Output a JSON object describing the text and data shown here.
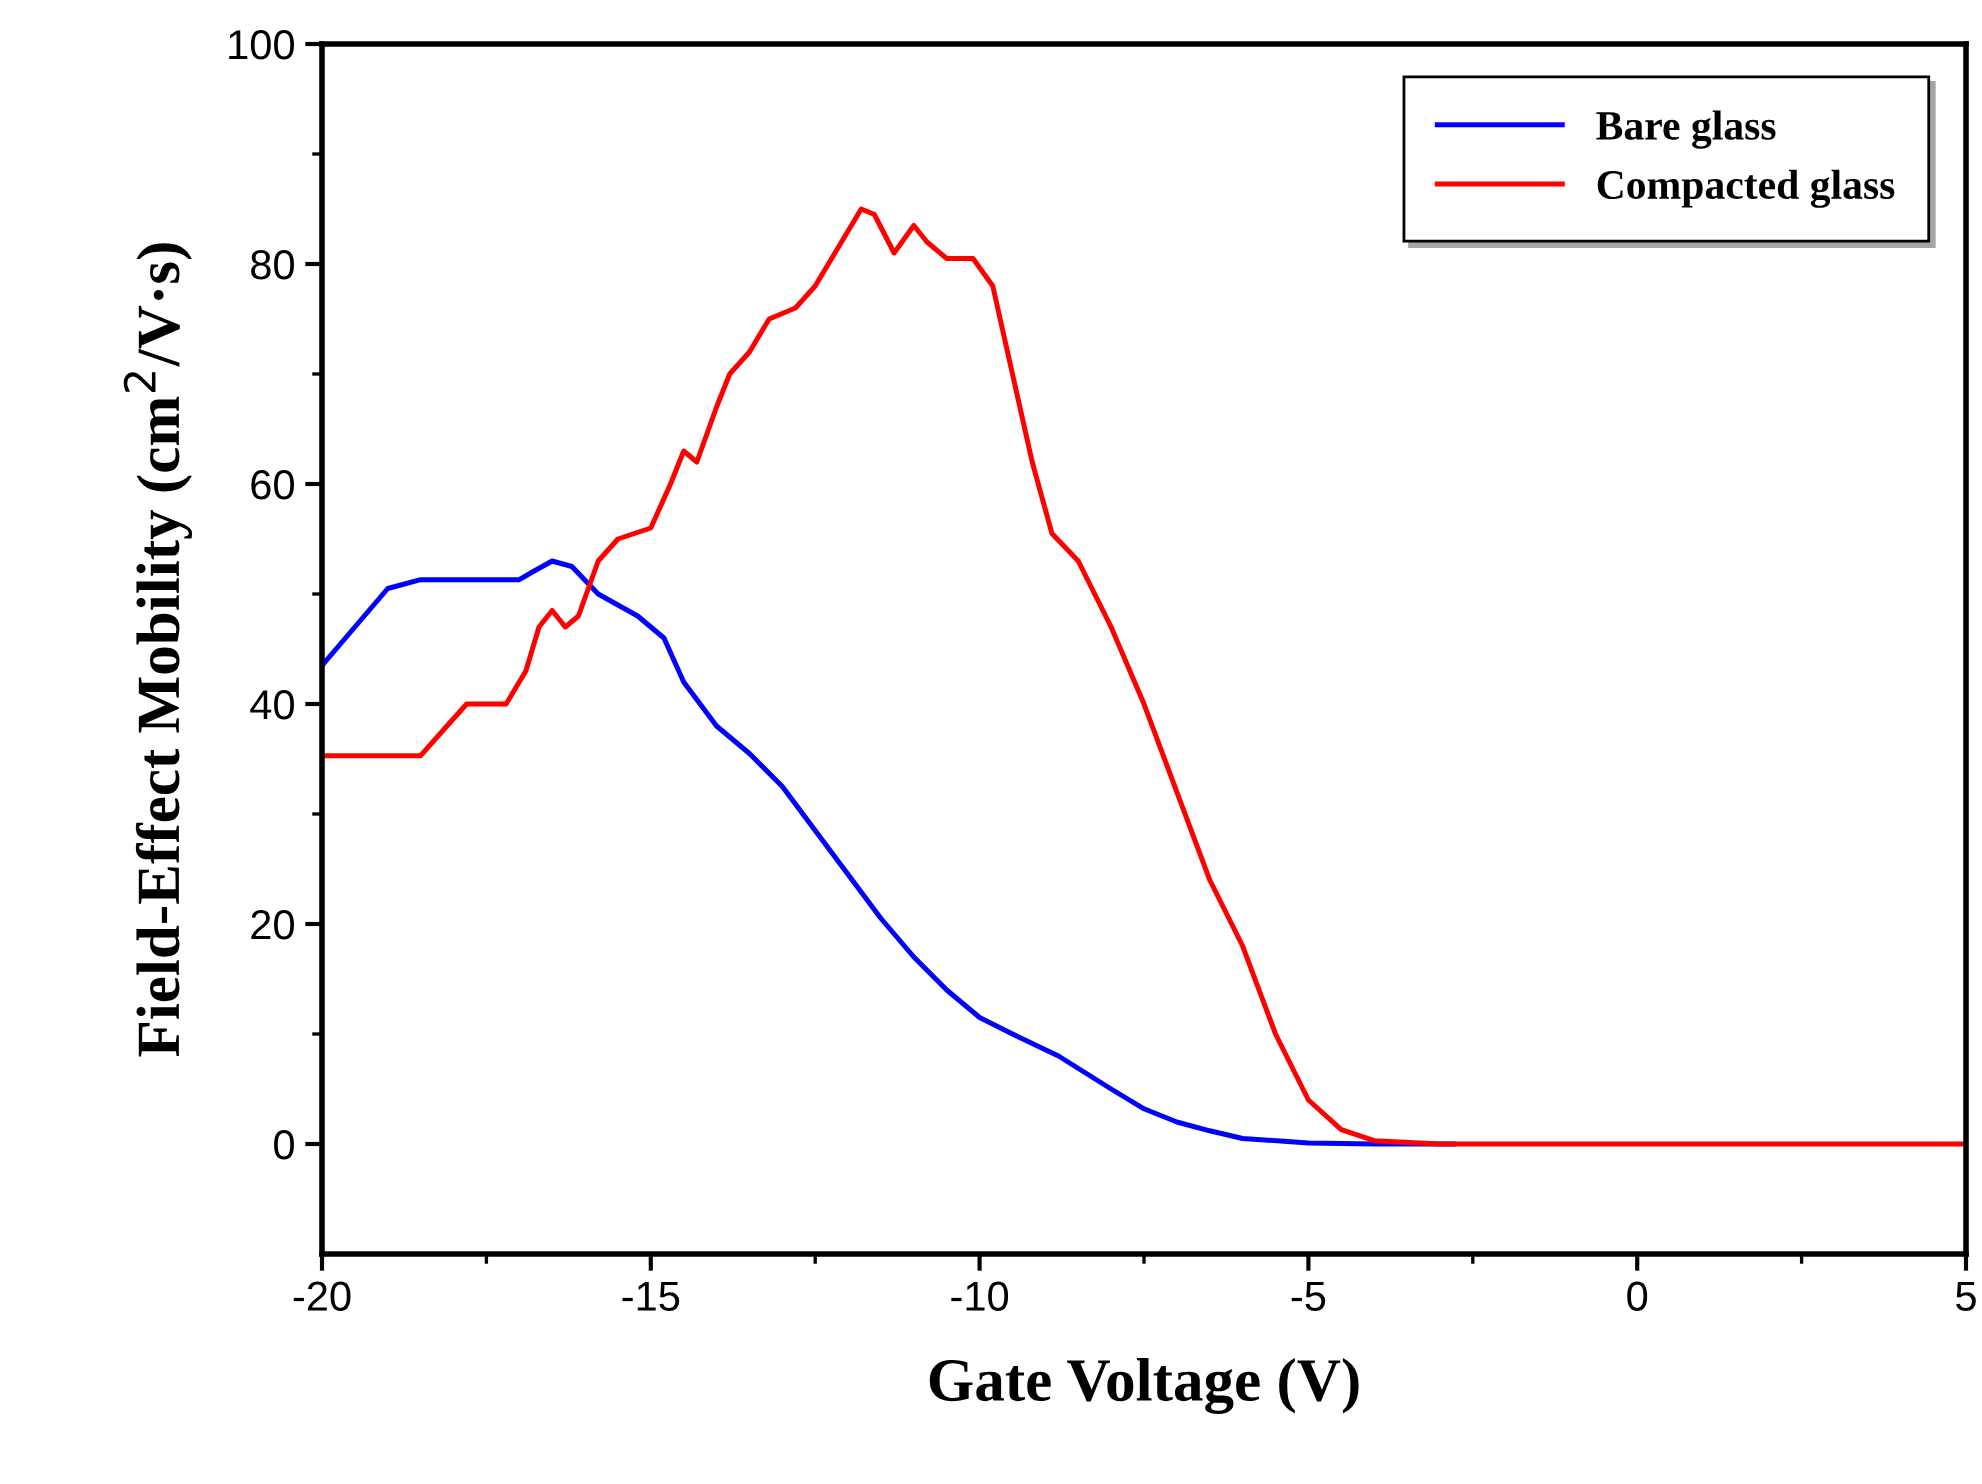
{
  "chart_data": {
    "type": "line",
    "xlabel": "Gate Voltage (V)",
    "ylabel": "Field-Effect Mobility (cm$^{2}$/V·s)",
    "xlim": [
      -20,
      5
    ],
    "ylim": [
      -10,
      100
    ],
    "xticks": [
      -20,
      -15,
      -10,
      -5,
      0,
      5
    ],
    "yticks": [
      0,
      20,
      40,
      60,
      80,
      100
    ],
    "grid": false,
    "legend": "top right",
    "marker": "none",
    "line_style": "solid",
    "series": [
      {
        "name": "Bare glass",
        "color": "#0000ff",
        "x": [
          -20,
          -19.5,
          -19,
          -18.5,
          -17,
          -16.8,
          -16.5,
          -16.2,
          -15.8,
          -15.2,
          -14.8,
          -14.5,
          -14,
          -13.5,
          -13,
          -12.5,
          -12,
          -11.5,
          -11,
          -10.5,
          -10,
          -9.5,
          -8.8,
          -8,
          -7.5,
          -7,
          -6.5,
          -6,
          -5,
          -4,
          -2.8
        ],
        "values": [
          43.5,
          47,
          50.5,
          51.3,
          51.3,
          52,
          53,
          52.5,
          50,
          48,
          46,
          42,
          38,
          35.5,
          32.5,
          28.5,
          24.5,
          20.5,
          17,
          14,
          11.5,
          10,
          8,
          5,
          3.2,
          2,
          1.2,
          0.5,
          0.1,
          0,
          0
        ]
      },
      {
        "name": "Compacted glass",
        "color": "#ff0000",
        "x": [
          -20,
          -18.5,
          -18.1,
          -17.8,
          -17.2,
          -16.9,
          -16.7,
          -16.5,
          -16.3,
          -16.1,
          -15.8,
          -15.5,
          -15,
          -14.7,
          -14.5,
          -14.3,
          -14,
          -13.8,
          -13.5,
          -13.2,
          -12.8,
          -12.5,
          -12.2,
          -11.8,
          -11.6,
          -11.3,
          -11,
          -10.8,
          -10.5,
          -10.1,
          -9.8,
          -9.5,
          -9.2,
          -8.9,
          -8.5,
          -8,
          -7.5,
          -7,
          -6.5,
          -6,
          -5.5,
          -5,
          -4.5,
          -4,
          -3,
          5
        ],
        "values": [
          35.3,
          35.3,
          38,
          40,
          40,
          43,
          47,
          48.5,
          47,
          48,
          53,
          55,
          56,
          60,
          63,
          62,
          67,
          70,
          72,
          75,
          76,
          78,
          81,
          85,
          84.5,
          81,
          83.5,
          82,
          80.5,
          80.5,
          78,
          70,
          62,
          55.5,
          53,
          47,
          40,
          32,
          24,
          18,
          10,
          4,
          1.3,
          0.3,
          0,
          0
        ]
      }
    ]
  }
}
